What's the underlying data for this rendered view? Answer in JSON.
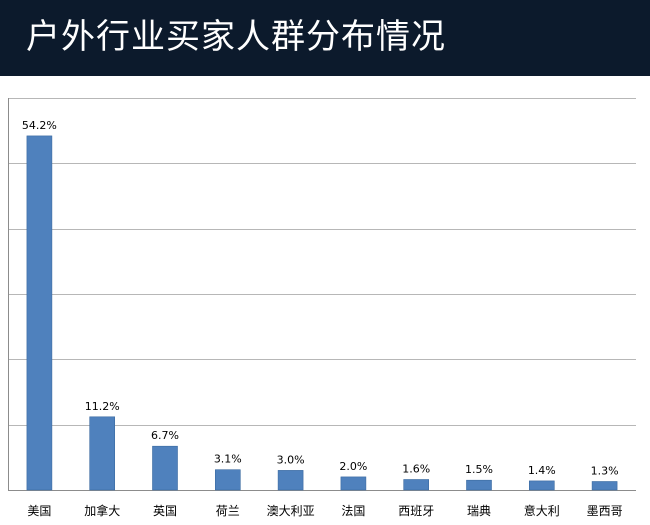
{
  "header": {
    "title": "户外行业买家人群分布情况"
  },
  "colors": {
    "header_bg": "#0c1a2c",
    "bar": "#4f81bd",
    "grid": "#b7b7b7"
  },
  "chart_data": {
    "type": "bar",
    "categories": [
      "美国",
      "加拿大",
      "英国",
      "荷兰",
      "澳大利亚",
      "法国",
      "西班牙",
      "瑞典",
      "意大利",
      "墨西哥"
    ],
    "values": [
      54.2,
      11.2,
      6.7,
      3.1,
      3.0,
      2.0,
      1.6,
      1.5,
      1.4,
      1.3
    ],
    "data_labels": [
      "54.2%",
      "11.2%",
      "6.7%",
      "3.1%",
      "3.0%",
      "2.0%",
      "1.6%",
      "1.5%",
      "1.4%",
      "1.3%"
    ],
    "ylim": [
      0,
      60
    ],
    "yticks": [
      0,
      10,
      20,
      30,
      40,
      50,
      60
    ],
    "ytick_labels_shown": false,
    "grid": true,
    "legend": false
  }
}
